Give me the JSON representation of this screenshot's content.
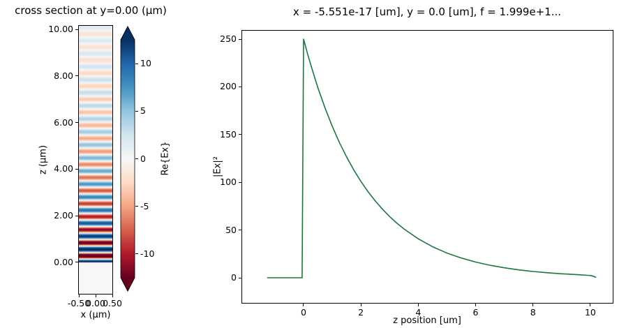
{
  "figure": {
    "background": "#ffffff"
  },
  "chart_data": [
    {
      "id": "cross-section-heatmap",
      "type": "heatmap",
      "title": "cross section at y=0.00 (μm)",
      "xlabel": "x (μm)",
      "ylabel": "z (μm)",
      "xlim": [
        -0.5,
        0.5
      ],
      "ylim": [
        -1.35,
        10.15
      ],
      "grid": false,
      "xticks": [
        {
          "v": -0.5,
          "label": "-0.50"
        },
        {
          "v": 0.0,
          "label": "0.00"
        },
        {
          "v": 0.5,
          "label": "0.50"
        }
      ],
      "yticks": [
        {
          "v": 0,
          "label": "0.00"
        },
        {
          "v": 2,
          "label": "2.00"
        },
        {
          "v": 4,
          "label": "4.00"
        },
        {
          "v": 6,
          "label": "6.00"
        },
        {
          "v": 8,
          "label": "8.00"
        },
        {
          "v": 10,
          "label": "10.00"
        }
      ],
      "field_model": {
        "description": "Re{Ex}(z) = amp0 * exp(-z/decay_um) * cos(2*pi*z/period_um) for z >= 0; 0 for z < 0; uniform across x",
        "amp0": 15.8,
        "decay_um": 4.4,
        "period_um": 0.56
      },
      "colormap": {
        "name": "RdBu",
        "vmin": -12.5,
        "vmax": 12.5,
        "anchors": [
          [
            0.0,
            "#67001f"
          ],
          [
            0.1,
            "#b2182b"
          ],
          [
            0.2,
            "#d6604d"
          ],
          [
            0.3,
            "#f4a582"
          ],
          [
            0.4,
            "#fddbc7"
          ],
          [
            0.5,
            "#f7f7f7"
          ],
          [
            0.6,
            "#d1e5f0"
          ],
          [
            0.7,
            "#92c5de"
          ],
          [
            0.8,
            "#4393c3"
          ],
          [
            0.9,
            "#2166ac"
          ],
          [
            1.0,
            "#053061"
          ]
        ]
      },
      "colorbar": {
        "label": "Re{Ex}",
        "extend": "both",
        "ticks": [
          {
            "v": 10,
            "label": "10"
          },
          {
            "v": 5,
            "label": "5"
          },
          {
            "v": 0,
            "label": "0"
          },
          {
            "v": -5,
            "label": "-5"
          },
          {
            "v": -10,
            "label": "-10"
          }
        ]
      }
    },
    {
      "id": "field-profile-line",
      "type": "line",
      "title": "x = -5.551e-17 [um], y = 0.0 [um], f = 1.999e+1...",
      "xlabel": "z position [um]",
      "ylabel": "|Ex|²",
      "xlim": [
        -2.14,
        10.78
      ],
      "ylim": [
        -26.3,
        258.8
      ],
      "grid": false,
      "line_color": "#1b7740",
      "xticks": [
        {
          "v": 0,
          "label": "0"
        },
        {
          "v": 2,
          "label": "2"
        },
        {
          "v": 4,
          "label": "4"
        },
        {
          "v": 6,
          "label": "6"
        },
        {
          "v": 8,
          "label": "8"
        },
        {
          "v": 10,
          "label": "10"
        }
      ],
      "yticks": [
        {
          "v": 0,
          "label": "0"
        },
        {
          "v": 50,
          "label": "50"
        },
        {
          "v": 100,
          "label": "100"
        },
        {
          "v": 150,
          "label": "150"
        },
        {
          "v": 200,
          "label": "200"
        },
        {
          "v": 250,
          "label": "250"
        }
      ],
      "points": [
        [
          -1.27,
          0
        ],
        [
          -0.8,
          0
        ],
        [
          -0.4,
          0
        ],
        [
          -0.05,
          0
        ],
        [
          0.0,
          250
        ],
        [
          0.15,
          233.5
        ],
        [
          0.3,
          218.3
        ],
        [
          0.5,
          199.1
        ],
        [
          0.75,
          177.8
        ],
        [
          1.0,
          158.7
        ],
        [
          1.25,
          141.7
        ],
        [
          1.5,
          126.6
        ],
        [
          1.75,
          113.0
        ],
        [
          2.0,
          100.9
        ],
        [
          2.25,
          90.1
        ],
        [
          2.5,
          80.5
        ],
        [
          2.75,
          71.9
        ],
        [
          3.0,
          64.2
        ],
        [
          3.25,
          57.3
        ],
        [
          3.5,
          51.2
        ],
        [
          4.0,
          40.8
        ],
        [
          4.5,
          32.5
        ],
        [
          5.0,
          25.9
        ],
        [
          5.5,
          20.7
        ],
        [
          6.0,
          16.5
        ],
        [
          6.5,
          13.1
        ],
        [
          7.0,
          10.5
        ],
        [
          7.5,
          8.3
        ],
        [
          8.0,
          6.6
        ],
        [
          8.5,
          5.3
        ],
        [
          9.0,
          4.2
        ],
        [
          9.4,
          3.5
        ],
        [
          9.7,
          3.0
        ],
        [
          9.9,
          2.6
        ],
        [
          10.0,
          2.4
        ],
        [
          10.1,
          1.6
        ],
        [
          10.2,
          0.4
        ]
      ]
    }
  ]
}
